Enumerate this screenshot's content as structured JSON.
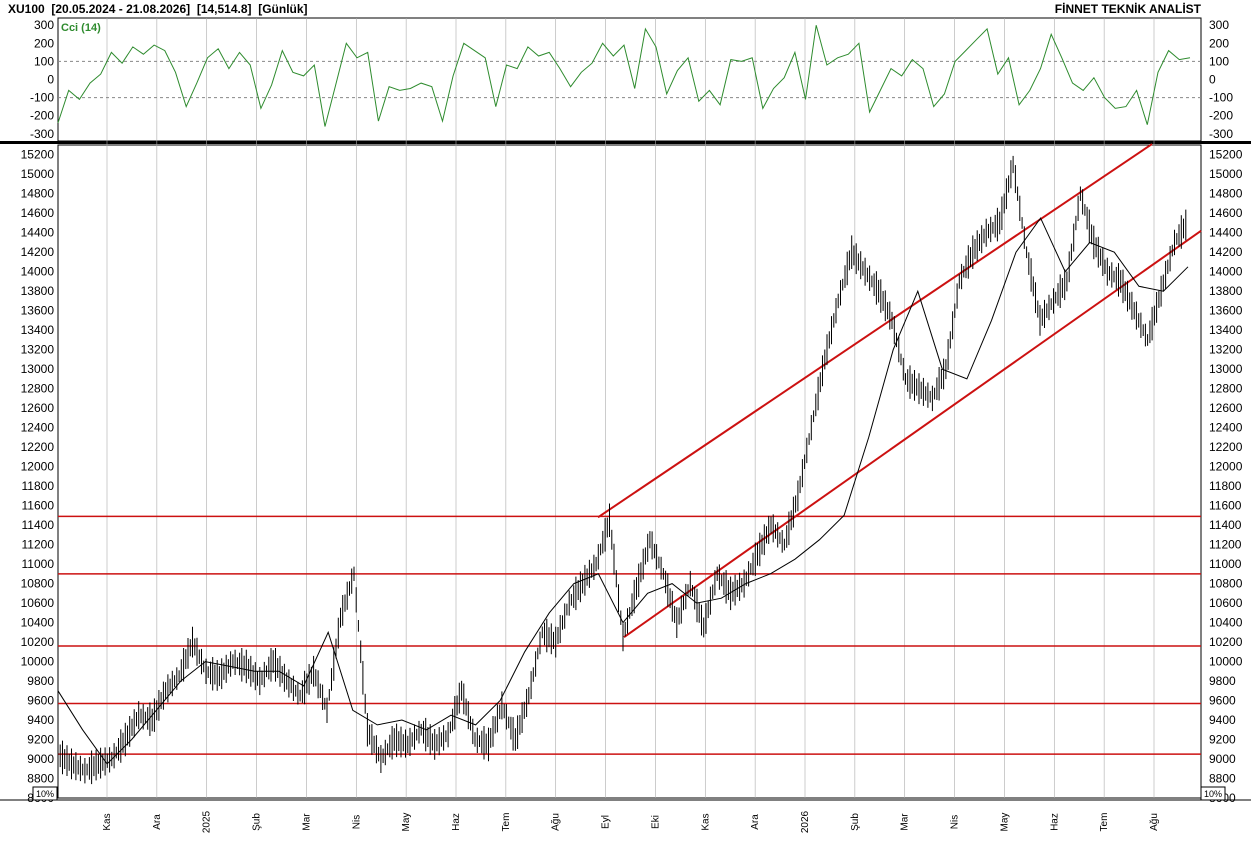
{
  "header": {
    "symbol": "XU100",
    "range": "[20.05.2024 - 21.08.2026]",
    "last": "[14,514.8]",
    "period": "[Günlük]",
    "brand": "FİNNET TEKNİK ANALİST"
  },
  "scale_box_left": "10%",
  "scale_box_right": "10%",
  "colors": {
    "price": "#000000",
    "ma": "#000000",
    "cci": "#2e8b2e",
    "lines": "#cc1111",
    "grid": "#aaaaaa"
  },
  "chart_data": [
    {
      "type": "line",
      "title": "Cci (14)",
      "ylim": [
        -340,
        340
      ],
      "ticks": [
        300,
        200,
        100,
        0,
        -100,
        -200,
        -300
      ],
      "reference_levels": [
        100,
        -100
      ],
      "series": [
        {
          "name": "Cci (14)",
          "values": [
            -240,
            -60,
            -110,
            -20,
            30,
            150,
            90,
            180,
            140,
            190,
            160,
            40,
            -150,
            -20,
            120,
            170,
            60,
            150,
            80,
            -160,
            -30,
            160,
            40,
            20,
            80,
            -260,
            -30,
            200,
            120,
            150,
            -230,
            -40,
            -60,
            -50,
            -20,
            -40,
            -230,
            20,
            200,
            160,
            120,
            -150,
            80,
            60,
            180,
            130,
            150,
            60,
            -40,
            40,
            90,
            200,
            130,
            190,
            -50,
            280,
            180,
            -80,
            50,
            120,
            -120,
            -60,
            -140,
            110,
            100,
            120,
            -160,
            -50,
            10,
            150,
            -110,
            300,
            80,
            120,
            140,
            200,
            -180,
            -60,
            60,
            20,
            110,
            60,
            -150,
            -80,
            100,
            160,
            220,
            280,
            30,
            120,
            -140,
            -60,
            60,
            250,
            120,
            -20,
            -60,
            10,
            -100,
            -160,
            -150,
            -60,
            -250,
            40,
            160,
            110,
            120
          ]
        }
      ]
    },
    {
      "type": "line",
      "ylabel": "",
      "ylim": [
        8600,
        15300
      ],
      "y_ticks": [
        15200,
        15000,
        14800,
        14600,
        14400,
        14200,
        14000,
        13800,
        13600,
        13400,
        13200,
        13000,
        12800,
        12600,
        12400,
        12200,
        12000,
        11800,
        11600,
        11400,
        11200,
        11000,
        10800,
        10600,
        10400,
        10200,
        10000,
        9800,
        9600,
        9400,
        9200,
        9000,
        8800,
        8600
      ],
      "x_tick_labels": [
        "Kas",
        "Ara",
        "2025",
        "Şub",
        "Mar",
        "Nis",
        "May",
        "Haz",
        "Tem",
        "Ağu",
        "Eyl",
        "Eki",
        "Kas",
        "Ara",
        "2026",
        "Şub",
        "Mar",
        "Nis",
        "May",
        "Haz",
        "Tem",
        "Ağu"
      ],
      "horizontal_levels": [
        11490,
        10900,
        10160,
        9570,
        9050
      ],
      "channels": [
        {
          "from": {
            "x": 0,
            "y": 11480
          },
          "to": {
            "x": 1,
            "y": 15310
          }
        },
        {
          "from": {
            "x": 0,
            "y": 10250
          },
          "to": {
            "x": 1,
            "y": 14420
          }
        }
      ],
      "series": [
        {
          "name": "price",
          "values": [
            9050,
            8950,
            8880,
            8950,
            9000,
            9200,
            9450,
            9400,
            9700,
            9850,
            10200,
            9900,
            9850,
            10000,
            9950,
            9800,
            10000,
            9800,
            9650,
            9900,
            9500,
            10450,
            10900,
            9300,
            9000,
            9200,
            9150,
            9300,
            9150,
            9250,
            9700,
            9200,
            9150,
            9550,
            9200,
            9650,
            10300,
            10200,
            10600,
            10800,
            11000,
            11450,
            10250,
            10750,
            11250,
            10900,
            10400,
            10800,
            10350,
            10900,
            10700,
            10800,
            11100,
            11400,
            11200,
            11700,
            12400,
            13100,
            13700,
            14200,
            14000,
            13800,
            13500,
            12900,
            12800,
            12700,
            13000,
            13900,
            14200,
            14400,
            14500,
            15100,
            14200,
            13500,
            13700,
            13900,
            14800,
            14300,
            14000,
            13900,
            13600,
            13300,
            13800,
            14300,
            14514.8
          ]
        },
        {
          "name": "moving average",
          "values": [
            9700,
            9300,
            8950,
            9200,
            9500,
            9800,
            10000,
            9950,
            9900,
            9900,
            9750,
            10300,
            9500,
            9350,
            9400,
            9300,
            9450,
            9350,
            9600,
            10100,
            10500,
            10800,
            10900,
            10400,
            10700,
            10800,
            10600,
            10650,
            10800,
            10900,
            11050,
            11250,
            11500,
            12300,
            13200,
            13800,
            13000,
            12900,
            13500,
            14200,
            14550,
            14000,
            14300,
            14200,
            13850,
            13800,
            14050
          ]
        }
      ]
    }
  ]
}
